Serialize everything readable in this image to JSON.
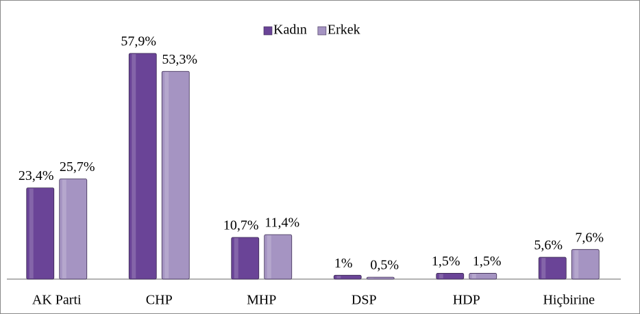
{
  "chart_data": {
    "type": "bar",
    "categories": [
      "AK Parti",
      "CHP",
      "MHP",
      "DSP",
      "HDP",
      "Hiçbirine"
    ],
    "series": [
      {
        "name": "Kadın",
        "color": "#6a4497",
        "values": [
          23.4,
          57.9,
          10.7,
          1,
          1.5,
          5.6
        ],
        "value_labels": [
          "23,4%",
          "57,9%",
          "10,7%",
          "1%",
          "1,5%",
          "5,6%"
        ]
      },
      {
        "name": "Erkek",
        "color": "#a594c2",
        "values": [
          25.7,
          53.3,
          11.4,
          0.5,
          1.5,
          7.6
        ],
        "value_labels": [
          "25,7%",
          "53,3%",
          "11,4%",
          "0,5%",
          "1,5%",
          "7,6%"
        ]
      }
    ],
    "legend": "top"
  }
}
